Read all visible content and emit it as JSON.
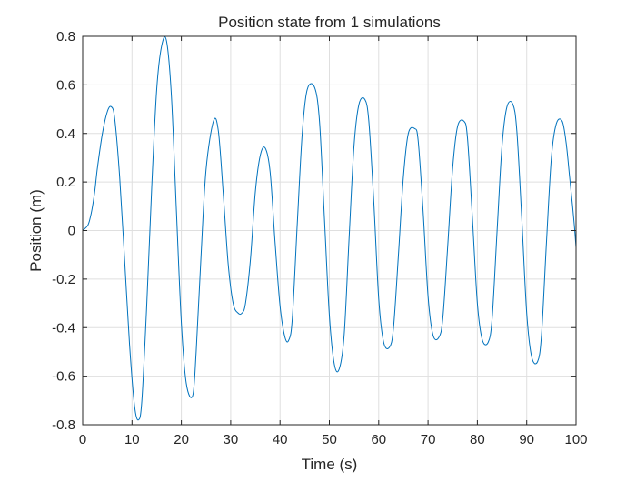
{
  "chart_data": {
    "type": "line",
    "title": "Position state from 1 simulations",
    "xlabel": "Time (s)",
    "ylabel": "Position (m)",
    "xlim": [
      0,
      100
    ],
    "ylim": [
      -0.8,
      0.8
    ],
    "xticks": [
      0,
      10,
      20,
      30,
      40,
      50,
      60,
      70,
      80,
      90,
      100
    ],
    "yticks": [
      -0.8,
      -0.6,
      -0.4,
      -0.2,
      0,
      0.2,
      0.4,
      0.6,
      0.8
    ],
    "xtick_labels": [
      "0",
      "10",
      "20",
      "30",
      "40",
      "50",
      "60",
      "70",
      "80",
      "90",
      "100"
    ],
    "ytick_labels": [
      "-0.8",
      "-0.6",
      "-0.4",
      "-0.2",
      "0",
      "0.2",
      "0.4",
      "0.6",
      "0.8"
    ],
    "grid": true,
    "box": true,
    "series": [
      {
        "color": "#0072BD",
        "x": [
          0,
          1,
          1.5,
          2,
          2.5,
          3,
          4,
          5,
          5.8,
          6.5,
          7.5,
          8.5,
          9.5,
          10.5,
          11.3,
          12,
          13,
          14,
          15,
          16,
          17,
          18,
          19,
          20,
          21,
          22.3,
          23,
          24,
          25,
          26.5,
          27.5,
          28.5,
          29.5,
          30.5,
          31.5,
          32.3,
          33,
          34,
          35,
          36,
          37,
          38,
          39,
          40,
          41,
          41.8,
          42.5,
          43.5,
          44.5,
          45.5,
          47,
          48,
          49,
          50,
          51,
          52,
          53,
          54,
          55,
          56,
          57.2,
          58,
          59,
          60,
          61,
          62.2,
          63,
          64,
          65,
          66,
          67.3,
          68,
          69,
          70,
          71,
          72.2,
          73,
          74,
          75,
          76,
          77.3,
          78,
          79,
          80,
          81,
          82.2,
          83,
          84,
          85,
          86,
          87.2,
          88,
          89,
          90,
          91,
          92.2,
          93,
          94,
          95,
          96,
          97.2,
          98,
          98.7,
          99.3,
          99.7,
          100
        ],
        "y": [
          0,
          0.02,
          0.05,
          0.1,
          0.17,
          0.26,
          0.4,
          0.49,
          0.51,
          0.46,
          0.22,
          -0.12,
          -0.47,
          -0.72,
          -0.78,
          -0.7,
          -0.3,
          0.18,
          0.58,
          0.76,
          0.78,
          0.55,
          0.08,
          -0.38,
          -0.63,
          -0.68,
          -0.5,
          -0.1,
          0.25,
          0.45,
          0.41,
          0.15,
          -0.14,
          -0.3,
          -0.34,
          -0.34,
          -0.3,
          -0.12,
          0.16,
          0.31,
          0.34,
          0.24,
          -0.05,
          -0.31,
          -0.44,
          -0.45,
          -0.36,
          0.03,
          0.4,
          0.58,
          0.59,
          0.45,
          0.05,
          -0.35,
          -0.55,
          -0.57,
          -0.43,
          -0.03,
          0.35,
          0.52,
          0.54,
          0.45,
          0.12,
          -0.28,
          -0.46,
          -0.48,
          -0.4,
          -0.1,
          0.22,
          0.4,
          0.42,
          0.37,
          0.08,
          -0.27,
          -0.43,
          -0.44,
          -0.36,
          -0.06,
          0.26,
          0.43,
          0.45,
          0.38,
          0.05,
          -0.3,
          -0.45,
          -0.46,
          -0.36,
          0,
          0.35,
          0.51,
          0.52,
          0.41,
          0.05,
          -0.34,
          -0.52,
          -0.54,
          -0.43,
          -0.05,
          0.3,
          0.44,
          0.45,
          0.36,
          0.22,
          0.1,
          0.01,
          -0.07
        ]
      }
    ]
  }
}
